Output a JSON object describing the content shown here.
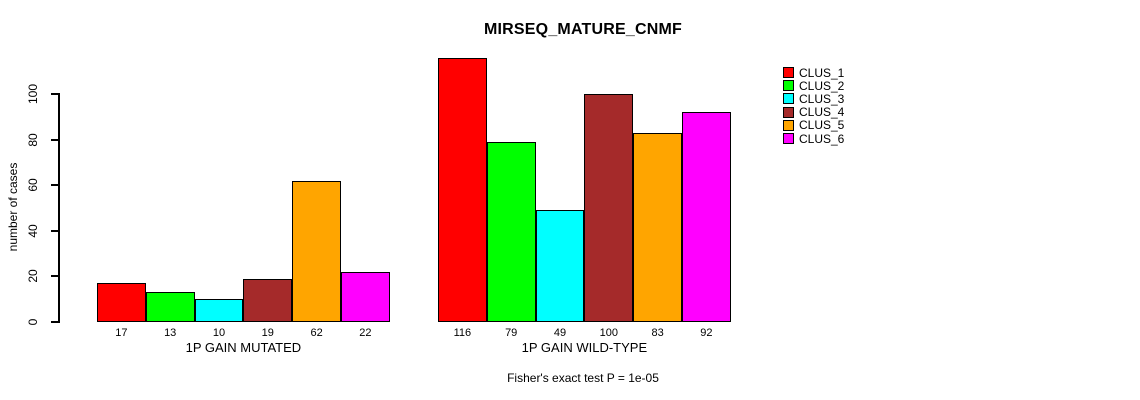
{
  "chart_data": {
    "type": "bar",
    "title": "MIRSEQ_MATURE_CNMF",
    "ylabel": "number of cases",
    "annotation": "Fisher's exact test P = 1e-05",
    "yticks": [
      0,
      20,
      40,
      60,
      80,
      100
    ],
    "ylim": [
      0,
      116
    ],
    "grid": false,
    "legend_position": "right-inside",
    "categories": [
      "1P GAIN MUTATED",
      "1P GAIN WILD-TYPE"
    ],
    "series": [
      {
        "name": "CLUS_1",
        "color": "#FF0000",
        "values": [
          17,
          116
        ]
      },
      {
        "name": "CLUS_2",
        "color": "#00FF00",
        "values": [
          13,
          79
        ]
      },
      {
        "name": "CLUS_3",
        "color": "#00FFFF",
        "values": [
          10,
          49
        ]
      },
      {
        "name": "CLUS_4",
        "color": "#A52A2A",
        "values": [
          19,
          100
        ]
      },
      {
        "name": "CLUS_5",
        "color": "#FFA500",
        "values": [
          62,
          83
        ]
      },
      {
        "name": "CLUS_6",
        "color": "#FF00FF",
        "values": [
          22,
          92
        ]
      }
    ],
    "bar_border_color": "#000000",
    "background_color": "#FFFFFF"
  }
}
